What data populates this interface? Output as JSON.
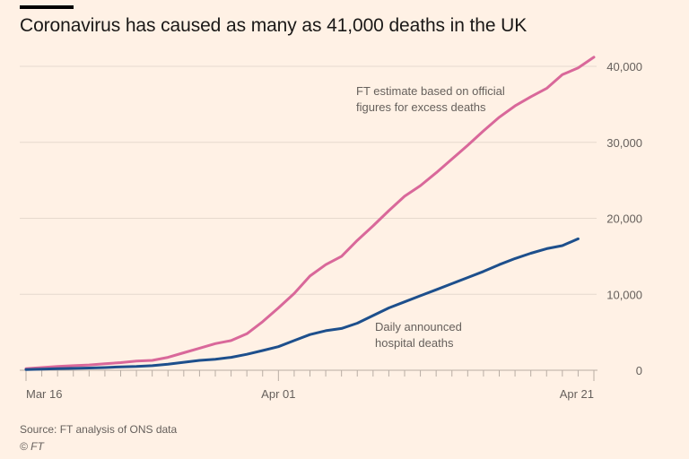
{
  "header": {
    "title": "Coronavirus has caused as many as 41,000 deaths in the UK"
  },
  "footer": {
    "source": "Source: FT analysis of ONS data",
    "copyright": "© FT"
  },
  "colors": {
    "background": "#fff1e5",
    "excess": "#d9689a",
    "hospital": "#1d4f8c",
    "grid": "#e6d9ce"
  },
  "chart_data": {
    "type": "line",
    "title": "Coronavirus has caused as many as 41,000 deaths in the UK",
    "xlabel": "",
    "ylabel": "",
    "x_days_from_mar16": [
      0,
      36
    ],
    "ylim": [
      0,
      41000
    ],
    "yticks": [
      0,
      10000,
      20000,
      30000,
      40000
    ],
    "ytick_labels": [
      "0",
      "10,000",
      "20,000",
      "30,000",
      "40,000"
    ],
    "xtick_labels": [
      {
        "day": 0,
        "label": "Mar 16"
      },
      {
        "day": 16,
        "label": "Apr 01"
      },
      {
        "day": 36,
        "label": "Apr 21"
      }
    ],
    "minor_ticks_every_days": 1,
    "grid": true,
    "y_axis_side": "right",
    "series": [
      {
        "name": "FT estimate based on official figures for excess deaths",
        "annotation": [
          "FT estimate based on official",
          "figures for excess deaths"
        ],
        "x": [
          0,
          1,
          2,
          3,
          4,
          5,
          6,
          7,
          8,
          9,
          10,
          11,
          12,
          13,
          14,
          15,
          16,
          17,
          18,
          19,
          20,
          21,
          22,
          23,
          24,
          25,
          26,
          27,
          28,
          29,
          30,
          31,
          32,
          33,
          34,
          35,
          36
        ],
        "values": [
          200,
          350,
          500,
          600,
          700,
          850,
          1000,
          1200,
          1300,
          1700,
          2300,
          2900,
          3500,
          3900,
          4800,
          6400,
          8200,
          10100,
          12400,
          13900,
          15000,
          17100,
          19000,
          21000,
          22900,
          24300,
          26000,
          27800,
          29600,
          31500,
          33300,
          34800,
          36000,
          37100,
          38900,
          39800,
          41200
        ]
      },
      {
        "name": "Daily announced hospital deaths",
        "annotation": [
          "Daily announced",
          "hospital deaths"
        ],
        "x": [
          0,
          1,
          2,
          3,
          4,
          5,
          6,
          7,
          8,
          9,
          10,
          11,
          12,
          13,
          14,
          15,
          16,
          17,
          18,
          19,
          20,
          21,
          22,
          23,
          24,
          25,
          26,
          27,
          28,
          29,
          30,
          31,
          32,
          33,
          34,
          35
        ],
        "values": [
          100,
          150,
          200,
          250,
          300,
          350,
          450,
          500,
          600,
          800,
          1050,
          1300,
          1450,
          1700,
          2100,
          2600,
          3100,
          3900,
          4700,
          5200,
          5500,
          6200,
          7200,
          8200,
          9000,
          9800,
          10600,
          11400,
          12200,
          13000,
          13900,
          14700,
          15400,
          16000,
          16400,
          17300
        ]
      }
    ]
  }
}
